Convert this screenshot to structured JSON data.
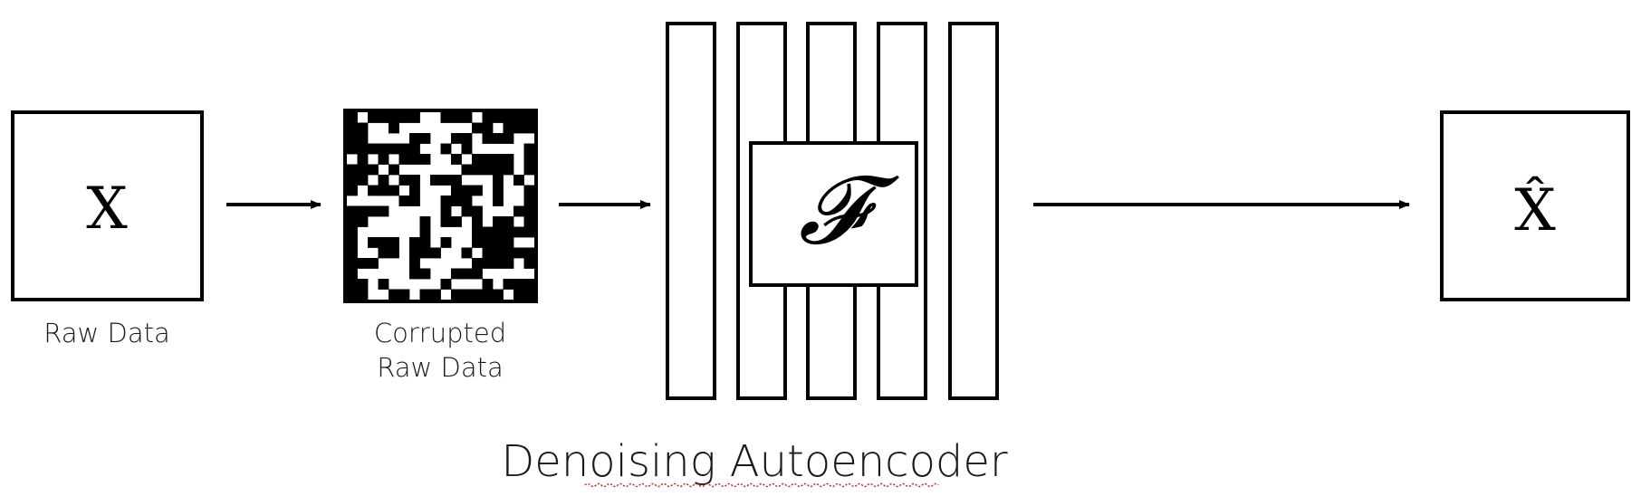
{
  "input_box": {
    "symbol": "X",
    "label": "Raw Data"
  },
  "corrupted_box": {
    "label_line1": "Corrupted",
    "label_line2": "Raw Data"
  },
  "autoencoder": {
    "function_symbol": "𝓕",
    "layer_count": 5
  },
  "output_box": {
    "symbol": "X̂"
  },
  "title": "Denoising Autoencoder",
  "colors": {
    "stroke": "#000000",
    "background": "#ffffff",
    "spellcheck_underline": "#cc2222"
  }
}
